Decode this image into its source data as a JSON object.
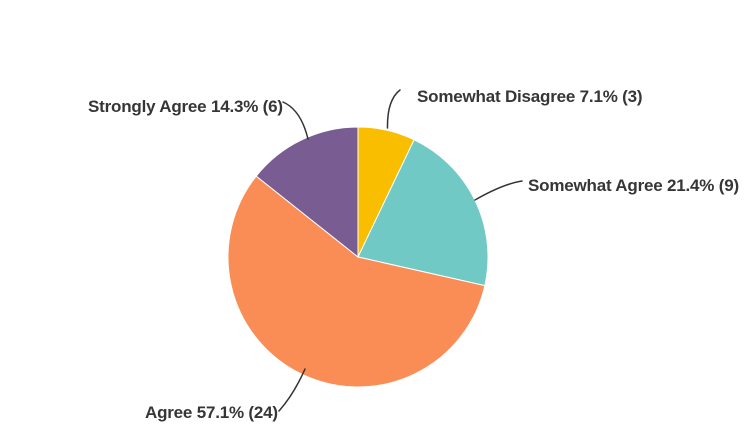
{
  "chart_data": {
    "type": "pie",
    "title": "",
    "legend_position": "callout-labels",
    "direction": "clockwise",
    "start_angle_deg": 0,
    "background": "#FFFFFF",
    "text_color": "#363636",
    "leader_line_color": "#333333",
    "categories": [
      "Somewhat Disagree",
      "Somewhat Agree",
      "Agree",
      "Strongly Agree"
    ],
    "values": [
      7.1,
      21.4,
      57.1,
      14.3
    ],
    "counts": [
      3,
      9,
      24,
      6
    ],
    "slices": [
      {
        "label": "Somewhat Disagree",
        "percent": 7.1,
        "count": 3,
        "color": "#F9BE00",
        "display": "Somewhat Disagree 7.1% (3)"
      },
      {
        "label": "Somewhat Agree",
        "percent": 21.4,
        "count": 9,
        "color": "#71C9C5",
        "display": "Somewhat Agree 21.4% (9)"
      },
      {
        "label": "Agree",
        "percent": 57.1,
        "count": 24,
        "color": "#FA8C55",
        "display": "Agree 57.1% (24)"
      },
      {
        "label": "Strongly Agree",
        "percent": 14.3,
        "count": 6,
        "color": "#795C91",
        "display": "Strongly Agree 14.3% (6)"
      }
    ]
  }
}
